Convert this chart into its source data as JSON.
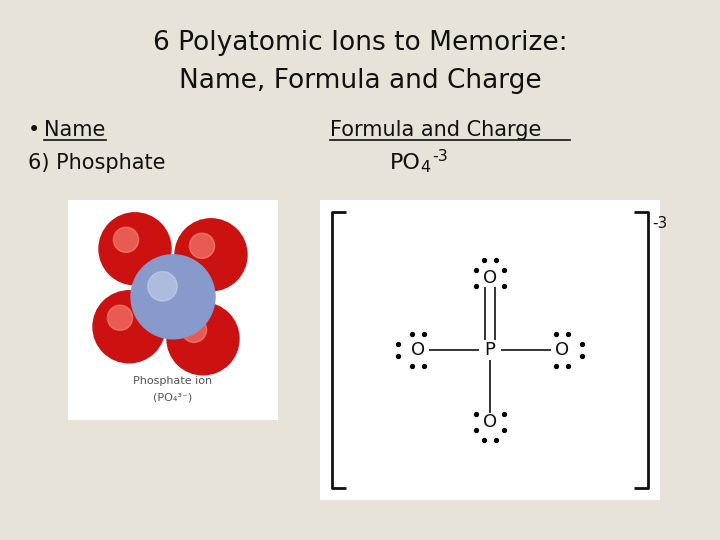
{
  "title_line1": "6 Polyatomic Ions to Memorize:",
  "title_line2": "Name, Formula and Charge",
  "bullet_name": "Name",
  "col2_header": "Formula and Charge",
  "row1_name": "6) Phosphate",
  "slide_bg": "#e8e3d8",
  "text_color": "#111111",
  "title_fontsize": 19,
  "body_fontsize": 15,
  "formula_fontsize": 16
}
